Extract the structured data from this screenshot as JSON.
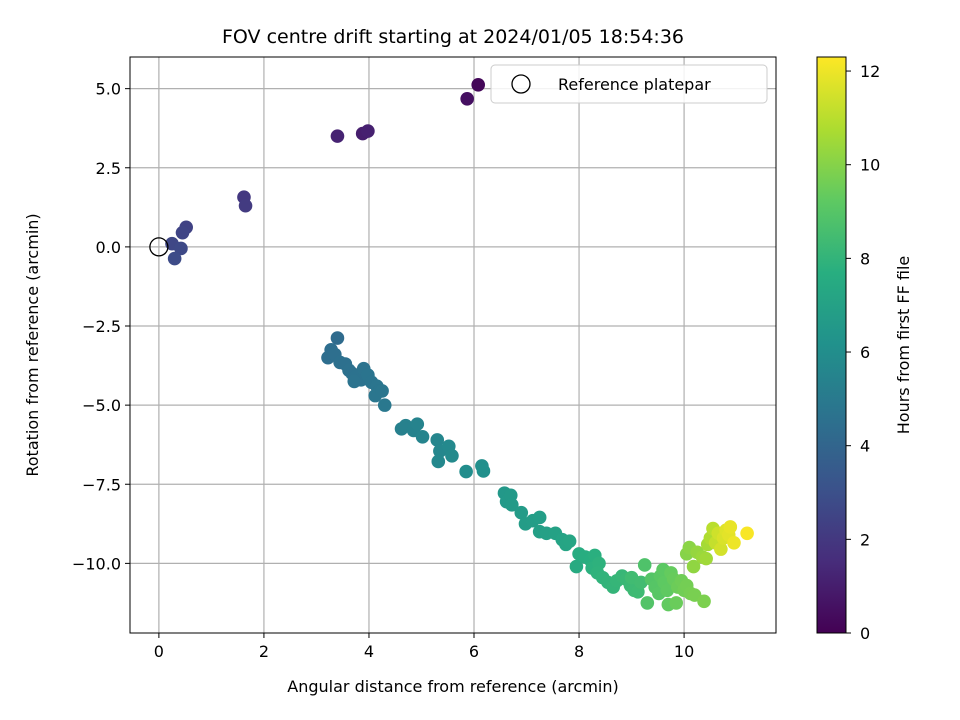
{
  "chart_data": {
    "type": "scatter",
    "title": "FOV centre drift starting at 2024/01/05 18:54:36",
    "xlabel": "Angular distance from reference (arcmin)",
    "ylabel": "Rotation from reference (arcmin)",
    "xlim": [
      -0.55,
      11.75
    ],
    "ylim": [
      -12.2,
      6.0
    ],
    "x_ticks": [
      0,
      2,
      4,
      6,
      8,
      10
    ],
    "y_ticks": [
      5.0,
      2.5,
      0.0,
      -2.5,
      -5.0,
      -7.5,
      -10.0
    ],
    "y_tick_labels": [
      "5.0",
      "2.5",
      "0.0",
      "−2.5",
      "−5.0",
      "−7.5",
      "−10.0"
    ],
    "grid": true,
    "legend": {
      "location": "top-right",
      "entries": [
        {
          "label": "Reference platepar",
          "marker": "open-circle"
        }
      ]
    },
    "reference_point": {
      "x": 0.0,
      "y": 0.0
    },
    "colorbar": {
      "label": "Hours from first FF file",
      "colormap": "viridis",
      "range": [
        0,
        12.3
      ],
      "ticks": [
        0,
        2,
        4,
        6,
        8,
        10,
        12
      ]
    },
    "points": [
      [
        6.08,
        5.12,
        0.2
      ],
      [
        5.87,
        4.68,
        0.5
      ],
      [
        3.88,
        3.58,
        1.0
      ],
      [
        3.98,
        3.66,
        1.1
      ],
      [
        3.4,
        3.5,
        1.2
      ],
      [
        1.62,
        1.57,
        2.0
      ],
      [
        1.65,
        1.3,
        2.1
      ],
      [
        0.52,
        0.62,
        2.4
      ],
      [
        0.45,
        0.45,
        2.5
      ],
      [
        0.25,
        0.1,
        2.6
      ],
      [
        0.42,
        -0.05,
        2.7
      ],
      [
        0.3,
        -0.37,
        2.8
      ],
      [
        3.4,
        -2.88,
        4.3
      ],
      [
        3.28,
        -3.25,
        4.4
      ],
      [
        3.22,
        -3.5,
        4.4
      ],
      [
        3.35,
        -3.4,
        4.45
      ],
      [
        3.45,
        -3.65,
        4.5
      ],
      [
        3.55,
        -3.7,
        4.5
      ],
      [
        3.62,
        -3.9,
        4.55
      ],
      [
        3.68,
        -4.0,
        4.55
      ],
      [
        3.75,
        -4.1,
        4.6
      ],
      [
        3.85,
        -4.2,
        4.6
      ],
      [
        3.72,
        -4.25,
        4.65
      ],
      [
        3.9,
        -3.85,
        4.65
      ],
      [
        3.98,
        -4.05,
        4.7
      ],
      [
        4.05,
        -4.28,
        4.7
      ],
      [
        4.15,
        -4.4,
        4.75
      ],
      [
        4.2,
        -4.55,
        4.75
      ],
      [
        4.12,
        -4.7,
        4.8
      ],
      [
        4.25,
        -4.55,
        4.8
      ],
      [
        4.3,
        -5.0,
        4.9
      ],
      [
        4.62,
        -5.75,
        5.3
      ],
      [
        4.7,
        -5.65,
        5.35
      ],
      [
        4.85,
        -5.8,
        5.4
      ],
      [
        4.92,
        -5.6,
        5.45
      ],
      [
        5.02,
        -6.0,
        5.5
      ],
      [
        5.3,
        -6.1,
        5.6
      ],
      [
        5.35,
        -6.45,
        5.65
      ],
      [
        5.32,
        -6.78,
        5.7
      ],
      [
        5.52,
        -6.3,
        5.75
      ],
      [
        5.58,
        -6.6,
        5.8
      ],
      [
        5.85,
        -7.1,
        5.95
      ],
      [
        6.15,
        -6.92,
        6.05
      ],
      [
        6.18,
        -7.08,
        6.1
      ],
      [
        6.58,
        -7.78,
        6.5
      ],
      [
        6.62,
        -8.05,
        6.55
      ],
      [
        6.7,
        -7.85,
        6.6
      ],
      [
        6.72,
        -8.15,
        6.65
      ],
      [
        6.9,
        -8.4,
        6.7
      ],
      [
        6.98,
        -8.75,
        6.75
      ],
      [
        7.12,
        -8.65,
        6.8
      ],
      [
        7.25,
        -8.55,
        6.85
      ],
      [
        7.25,
        -9.0,
        6.9
      ],
      [
        7.38,
        -9.05,
        6.95
      ],
      [
        7.55,
        -9.05,
        7.0
      ],
      [
        7.68,
        -9.25,
        7.1
      ],
      [
        7.75,
        -9.4,
        7.15
      ],
      [
        7.82,
        -9.3,
        7.2
      ],
      [
        7.95,
        -10.1,
        7.5
      ],
      [
        8.0,
        -9.7,
        7.6
      ],
      [
        8.12,
        -9.8,
        7.65
      ],
      [
        8.22,
        -9.9,
        7.7
      ],
      [
        8.3,
        -9.75,
        7.75
      ],
      [
        8.25,
        -10.15,
        7.8
      ],
      [
        8.38,
        -10.0,
        7.85
      ],
      [
        8.35,
        -10.3,
        7.9
      ],
      [
        8.45,
        -10.45,
        7.95
      ],
      [
        8.55,
        -10.6,
        8.0
      ],
      [
        8.65,
        -10.75,
        8.05
      ],
      [
        8.72,
        -10.55,
        8.1
      ],
      [
        8.82,
        -10.4,
        8.15
      ],
      [
        8.9,
        -10.5,
        8.2
      ],
      [
        8.98,
        -10.7,
        8.25
      ],
      [
        9.05,
        -10.85,
        8.3
      ],
      [
        9.12,
        -10.9,
        8.35
      ],
      [
        9.0,
        -10.45,
        8.4
      ],
      [
        9.18,
        -10.6,
        8.45
      ],
      [
        9.25,
        -10.05,
        8.8
      ],
      [
        9.3,
        -11.25,
        8.9
      ],
      [
        9.38,
        -10.5,
        8.95
      ],
      [
        9.45,
        -10.75,
        9.0
      ],
      [
        9.52,
        -10.95,
        9.05
      ],
      [
        9.55,
        -10.4,
        9.1
      ],
      [
        9.6,
        -10.2,
        9.15
      ],
      [
        9.62,
        -10.6,
        9.2
      ],
      [
        9.68,
        -10.85,
        9.25
      ],
      [
        9.7,
        -11.3,
        9.3
      ],
      [
        9.75,
        -10.3,
        9.35
      ],
      [
        9.8,
        -10.5,
        9.4
      ],
      [
        9.85,
        -11.25,
        9.45
      ],
      [
        9.88,
        -10.75,
        9.5
      ],
      [
        9.95,
        -10.55,
        9.55
      ],
      [
        10.0,
        -10.85,
        9.6
      ],
      [
        10.05,
        -10.7,
        9.65
      ],
      [
        10.12,
        -10.95,
        9.7
      ],
      [
        10.2,
        -11.0,
        9.75
      ],
      [
        10.38,
        -11.2,
        9.8
      ],
      [
        10.05,
        -9.7,
        10.0
      ],
      [
        10.1,
        -9.5,
        10.1
      ],
      [
        10.18,
        -10.1,
        10.2
      ],
      [
        10.25,
        -9.65,
        10.3
      ],
      [
        10.35,
        -9.8,
        10.4
      ],
      [
        10.42,
        -9.85,
        10.5
      ],
      [
        10.45,
        -9.4,
        10.6
      ],
      [
        10.5,
        -9.2,
        10.8
      ],
      [
        10.55,
        -8.9,
        11.0
      ],
      [
        10.6,
        -9.35,
        11.2
      ],
      [
        10.65,
        -9.05,
        11.4
      ],
      [
        10.7,
        -9.55,
        11.5
      ],
      [
        10.75,
        -9.2,
        11.6
      ],
      [
        10.8,
        -8.95,
        11.7
      ],
      [
        10.85,
        -9.1,
        11.8
      ],
      [
        10.88,
        -8.85,
        11.9
      ],
      [
        10.95,
        -9.35,
        12.0
      ],
      [
        11.2,
        -9.05,
        12.2
      ]
    ]
  }
}
